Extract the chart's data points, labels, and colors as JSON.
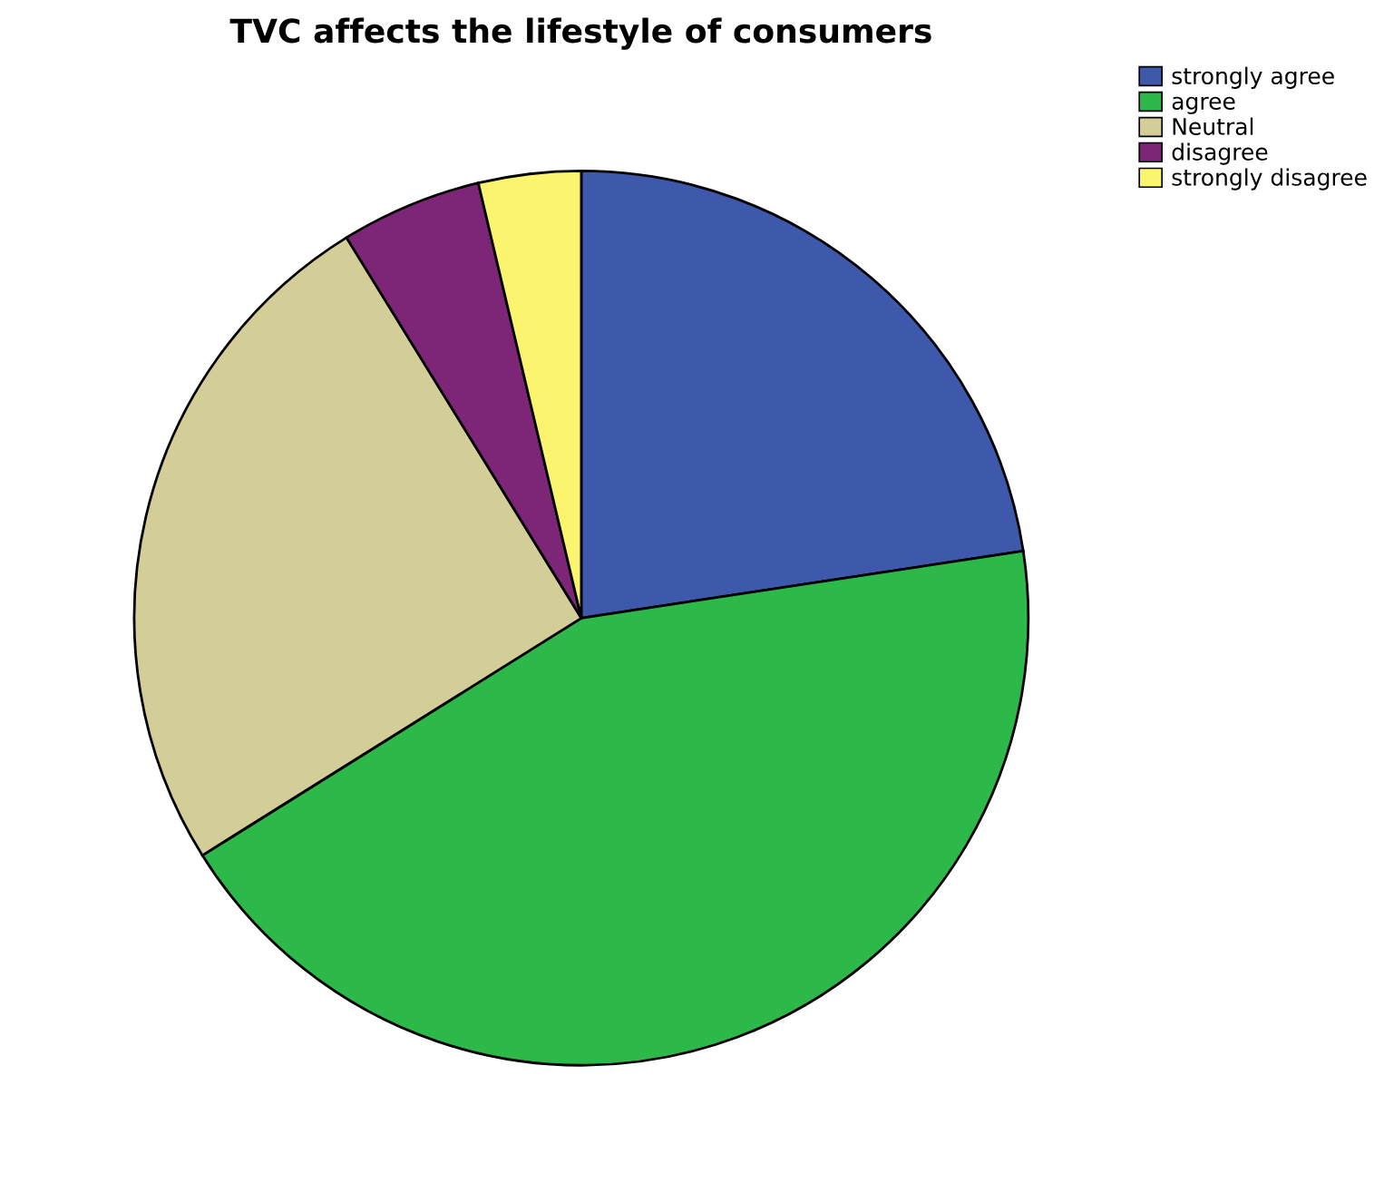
{
  "chart_data": {
    "type": "pie",
    "title": "TVC affects the lifestyle of consumers",
    "categories": [
      "strongly agree",
      "agree",
      "Neutral",
      "disagree",
      "strongly disagree"
    ],
    "values": [
      22.6,
      43.5,
      25.1,
      5.1,
      3.7
    ],
    "colors": [
      "#3e58ac",
      "#2db84a",
      "#d3cd98",
      "#7d2677",
      "#fbf46e"
    ],
    "legend": "top right"
  }
}
